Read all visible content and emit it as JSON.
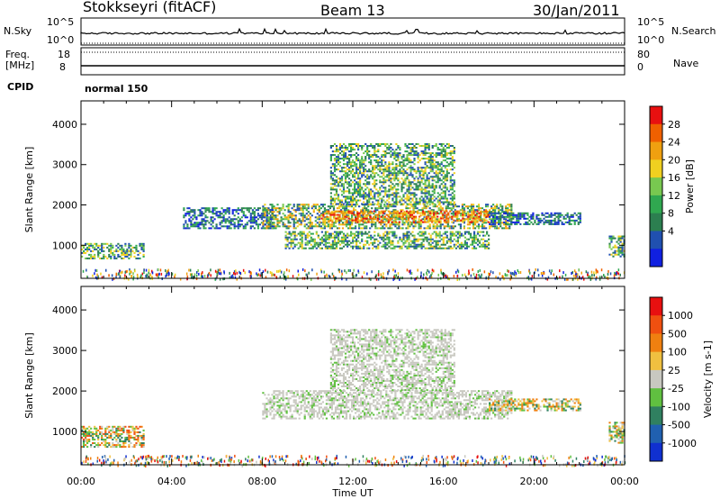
{
  "header": {
    "title": "Stokkseyri (fitACF)",
    "beam": "Beam 13",
    "date": "30/Jan/2011"
  },
  "top_panels": {
    "nsky_label": "N.Sky",
    "nsearch_label": "N.Search",
    "nsky_ticks": [
      "10^5",
      "10^0"
    ],
    "nsearch_ticks": [
      "10^5",
      "10^0"
    ],
    "freq_label": "Freq.",
    "freq_unit": "[MHz]",
    "freq_ticks": [
      "18",
      "8"
    ],
    "nave_label": "Nave",
    "nave_ticks": [
      "80",
      "0"
    ],
    "cpid_label": "CPID",
    "cpid_value": "normal 150"
  },
  "chart_data": [
    {
      "type": "heatmap",
      "panel": "power",
      "ylabel": "Slant Range [km]",
      "xlabel": "",
      "yticks": [
        1000,
        2000,
        3000,
        4000
      ],
      "ylim": [
        180,
        4580
      ],
      "xlim": [
        0,
        24
      ],
      "colorbar": {
        "label": "Power [dB]",
        "ticks": [
          "28",
          "24",
          "20",
          "16",
          "12",
          "8",
          "4"
        ],
        "colors": [
          "#1020e0",
          "#2050b0",
          "#2c7f50",
          "#30a850",
          "#78c850",
          "#f0d020",
          "#f0a010",
          "#f06000",
          "#e81010"
        ]
      },
      "regions": [
        {
          "t": [
            0.0,
            2.8
          ],
          "r": [
            650,
            1050
          ],
          "level": "low-mid"
        },
        {
          "t": [
            4.5,
            8.5
          ],
          "r": [
            1400,
            1900
          ],
          "level": "low"
        },
        {
          "t": [
            8.0,
            19.0
          ],
          "r": [
            1400,
            2000
          ],
          "level": "mid"
        },
        {
          "t": [
            10.5,
            18.0
          ],
          "r": [
            1550,
            1850
          ],
          "level": "high"
        },
        {
          "t": [
            9.0,
            18.0
          ],
          "r": [
            900,
            1350
          ],
          "level": "low-mid"
        },
        {
          "t": [
            11.0,
            16.5
          ],
          "r": [
            2000,
            3500
          ],
          "level": "low-mid"
        },
        {
          "t": [
            18.0,
            22.0
          ],
          "r": [
            1500,
            1800
          ],
          "level": "low"
        },
        {
          "t": [
            23.3,
            24.0
          ],
          "r": [
            700,
            1200
          ],
          "level": "low-mid"
        }
      ]
    },
    {
      "type": "heatmap",
      "panel": "velocity",
      "ylabel": "Slant Range [km]",
      "xlabel": "Time UT",
      "yticks": [
        1000,
        2000,
        3000,
        4000
      ],
      "ylim": [
        180,
        4580
      ],
      "xlim": [
        0,
        24
      ],
      "xticks": [
        "00:00",
        "04:00",
        "08:00",
        "12:00",
        "16:00",
        "20:00",
        "00:00"
      ],
      "colorbar": {
        "label": "Velocity [m s-1]",
        "ticks": [
          "1000",
          "500",
          "100",
          "25",
          "-25",
          "-100",
          "-500",
          "-1000"
        ],
        "colors": [
          "#1030d0",
          "#2060b0",
          "#308060",
          "#60c040",
          "#c8c8c0",
          "#f0c040",
          "#f08010",
          "#f05010",
          "#e81010"
        ]
      },
      "regions": [
        {
          "t": [
            0.0,
            2.8
          ],
          "r": [
            600,
            1100
          ],
          "level": "mixed-positive"
        },
        {
          "t": [
            8.0,
            19.0
          ],
          "r": [
            1300,
            2000
          ],
          "level": "ground-scatter"
        },
        {
          "t": [
            11.0,
            16.5
          ],
          "r": [
            2000,
            3500
          ],
          "level": "ground-scatter"
        },
        {
          "t": [
            18.0,
            22.0
          ],
          "r": [
            1500,
            1800
          ],
          "level": "mixed"
        },
        {
          "t": [
            23.3,
            24.0
          ],
          "r": [
            700,
            1200
          ],
          "level": "mixed"
        }
      ]
    }
  ]
}
